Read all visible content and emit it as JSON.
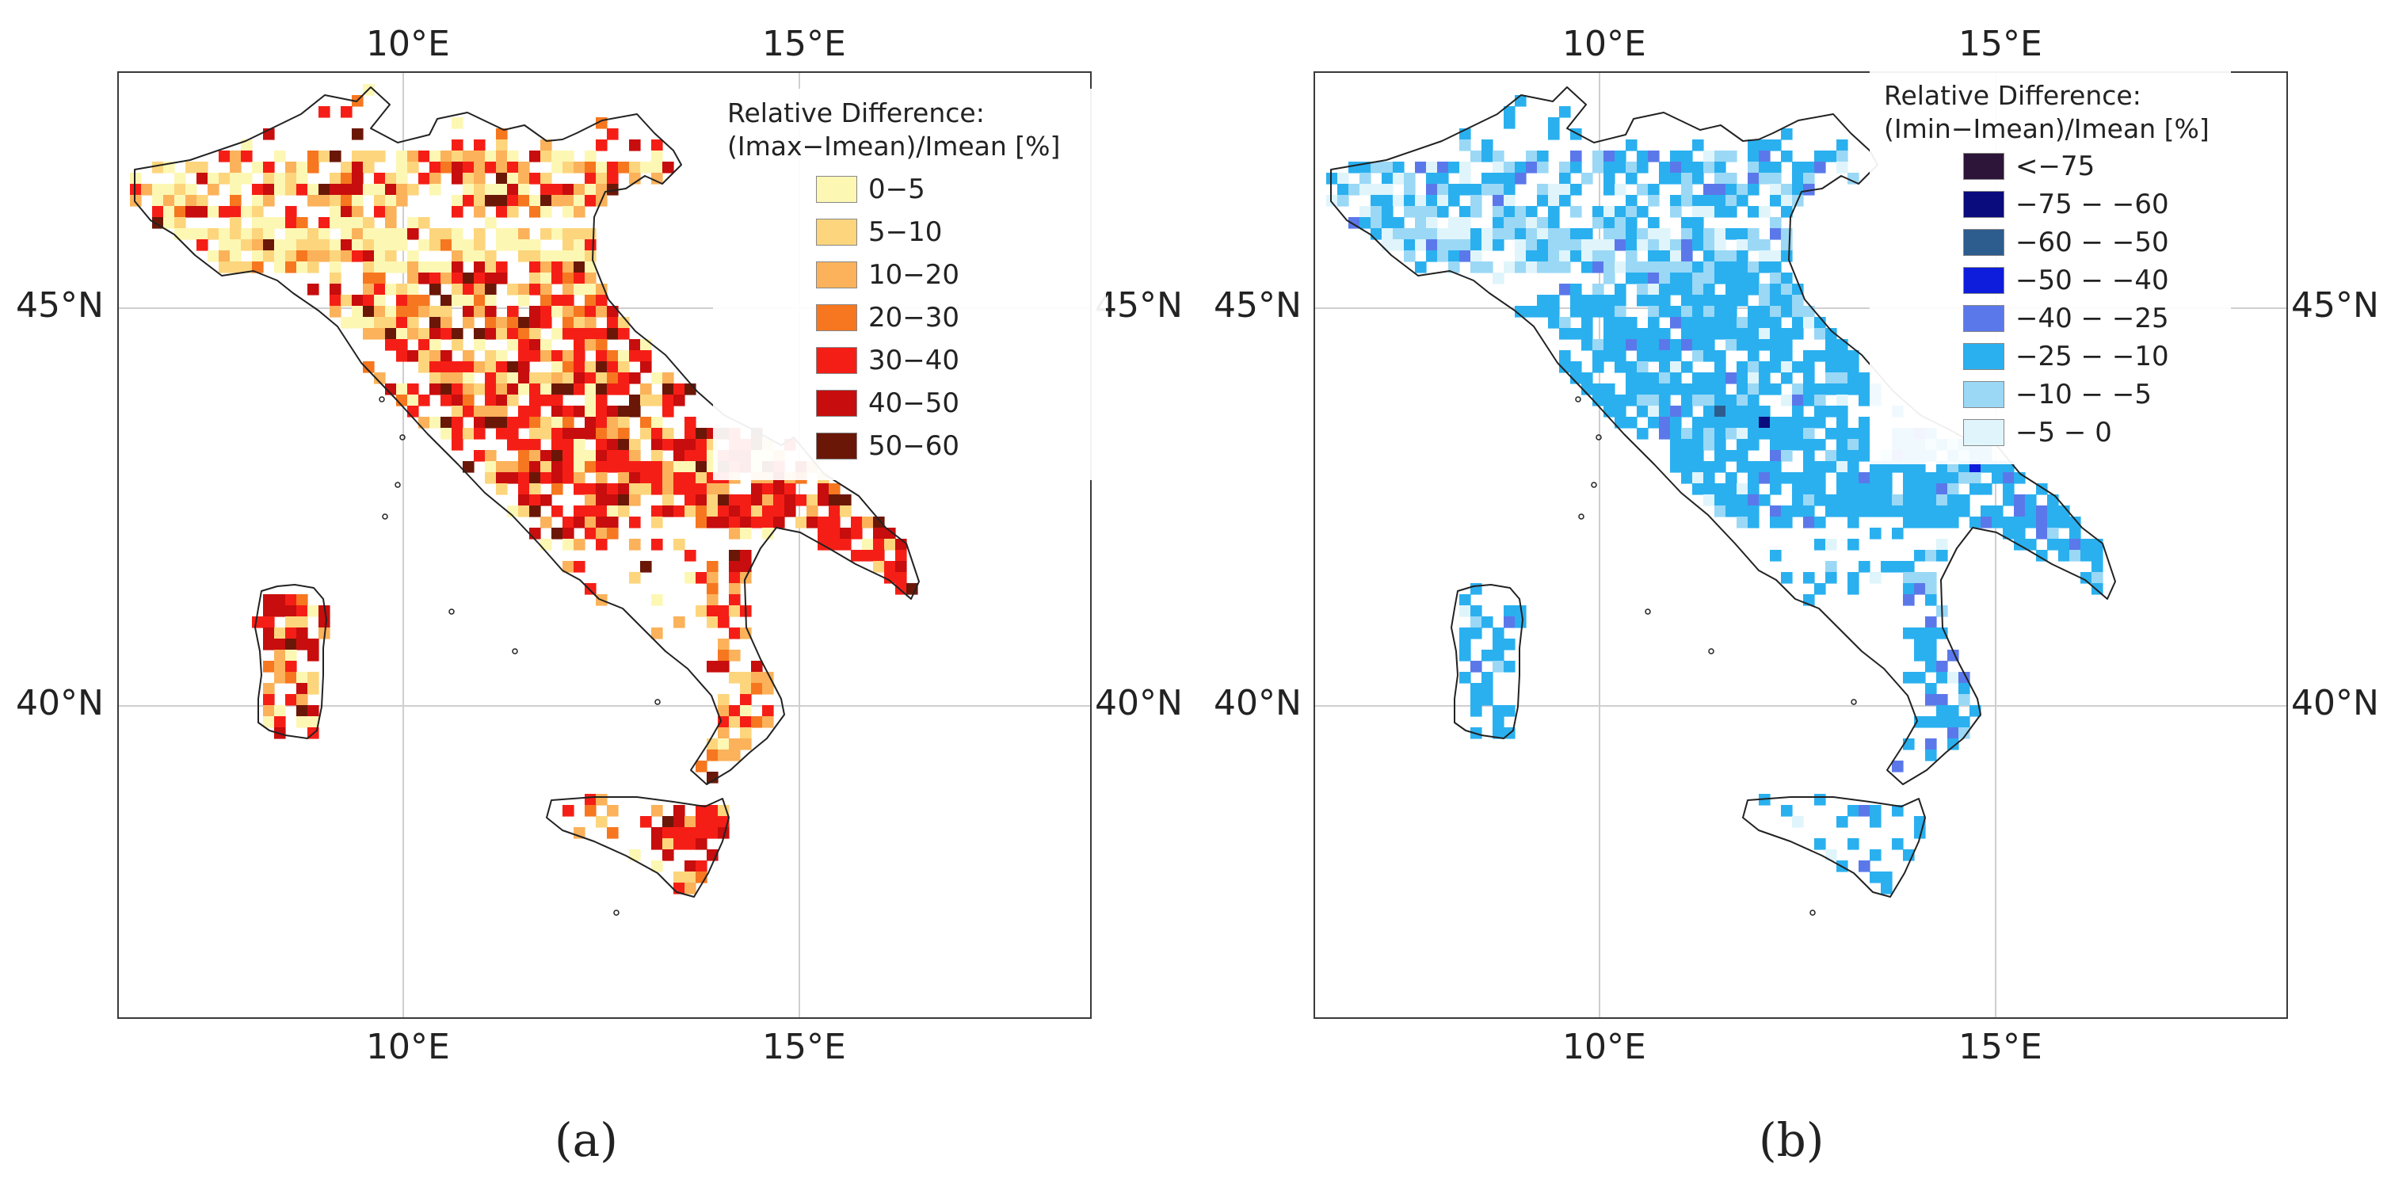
{
  "panels": [
    {
      "id": "a",
      "label": "(a)",
      "lon_ticks": [
        "10°E",
        "15°E"
      ],
      "lat_ticks": [
        "45°N",
        "40°N"
      ],
      "legend_title_line1": "Relative Difference:",
      "legend_title_line2": "(Imax−Imean)/Imean [%]",
      "legend": [
        {
          "label": "0−5",
          "color": "#fdf7b4"
        },
        {
          "label": "5−10",
          "color": "#fdd57c"
        },
        {
          "label": "10−20",
          "color": "#fbb25a"
        },
        {
          "label": "20−30",
          "color": "#f6771f"
        },
        {
          "label": "30−40",
          "color": "#f51e16"
        },
        {
          "label": "40−50",
          "color": "#c70d0d"
        },
        {
          "label": "50−60",
          "color": "#6b1708"
        }
      ]
    },
    {
      "id": "b",
      "label": "(b)",
      "lon_ticks": [
        "10°E",
        "15°E"
      ],
      "lat_ticks": [
        "45°N",
        "40°N"
      ],
      "legend_title_line1": "Relative Difference:",
      "legend_title_line2": "(Imin−Imean)/Imean [%]",
      "legend": [
        {
          "label": "<−75",
          "color": "#2c1538"
        },
        {
          "label": "−75 − −60",
          "color": "#0a0c7e"
        },
        {
          "label": "−60 − −50",
          "color": "#2d5c8e"
        },
        {
          "label": "−50 − −40",
          "color": "#0d1ddb"
        },
        {
          "label": "−40 − −25",
          "color": "#5b78ea"
        },
        {
          "label": "−25 − −10",
          "color": "#2ab0ef"
        },
        {
          "label": "−10 − −5",
          "color": "#9ad8f6"
        },
        {
          "label": "−5 − 0",
          "color": "#dff5fb"
        }
      ]
    }
  ]
}
